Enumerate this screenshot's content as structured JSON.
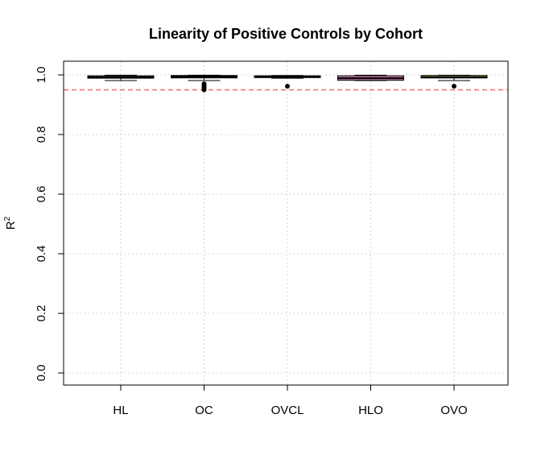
{
  "chart_data": {
    "type": "boxplot",
    "title": "Linearity of Positive Controls by Cohort",
    "xlabel": "",
    "ylabel": "R",
    "ylabel_superscript": "2",
    "ylim": [
      0.0,
      1.0
    ],
    "yticks": [
      "0.0",
      "0.2",
      "0.4",
      "0.6",
      "0.8",
      "1.0"
    ],
    "grid": true,
    "reference_line": {
      "y": 0.95,
      "color": "#f26b6b"
    },
    "categories": [
      "HL",
      "OC",
      "OVCL",
      "HLO",
      "OVO"
    ],
    "boxes": [
      {
        "name": "HL",
        "color": "#8da0cb",
        "whisker_low": 0.981,
        "q1": 0.989,
        "median": 0.992,
        "q3": 0.997,
        "whisker_high": 0.999,
        "outliers": []
      },
      {
        "name": "OC",
        "color": "#66c2a5",
        "whisker_low": 0.981,
        "q1": 0.99,
        "median": 0.994,
        "q3": 0.998,
        "whisker_high": 0.999,
        "outliers": [
          0.95,
          0.955,
          0.96,
          0.965,
          0.97
        ]
      },
      {
        "name": "OVCL",
        "color": "#a6d854",
        "whisker_low": 0.989,
        "q1": 0.991,
        "median": 0.994,
        "q3": 0.997,
        "whisker_high": 0.998,
        "outliers": [
          0.962
        ]
      },
      {
        "name": "HLO",
        "color": "#e78ac3",
        "whisker_low": 0.981,
        "q1": 0.982,
        "median": 0.989,
        "q3": 0.997,
        "whisker_high": 0.999,
        "outliers": []
      },
      {
        "name": "OVO",
        "color": "#a6d854",
        "whisker_low": 0.981,
        "q1": 0.99,
        "median": 0.992,
        "q3": 0.998,
        "whisker_high": 0.999,
        "outliers": [
          0.962
        ]
      }
    ]
  }
}
